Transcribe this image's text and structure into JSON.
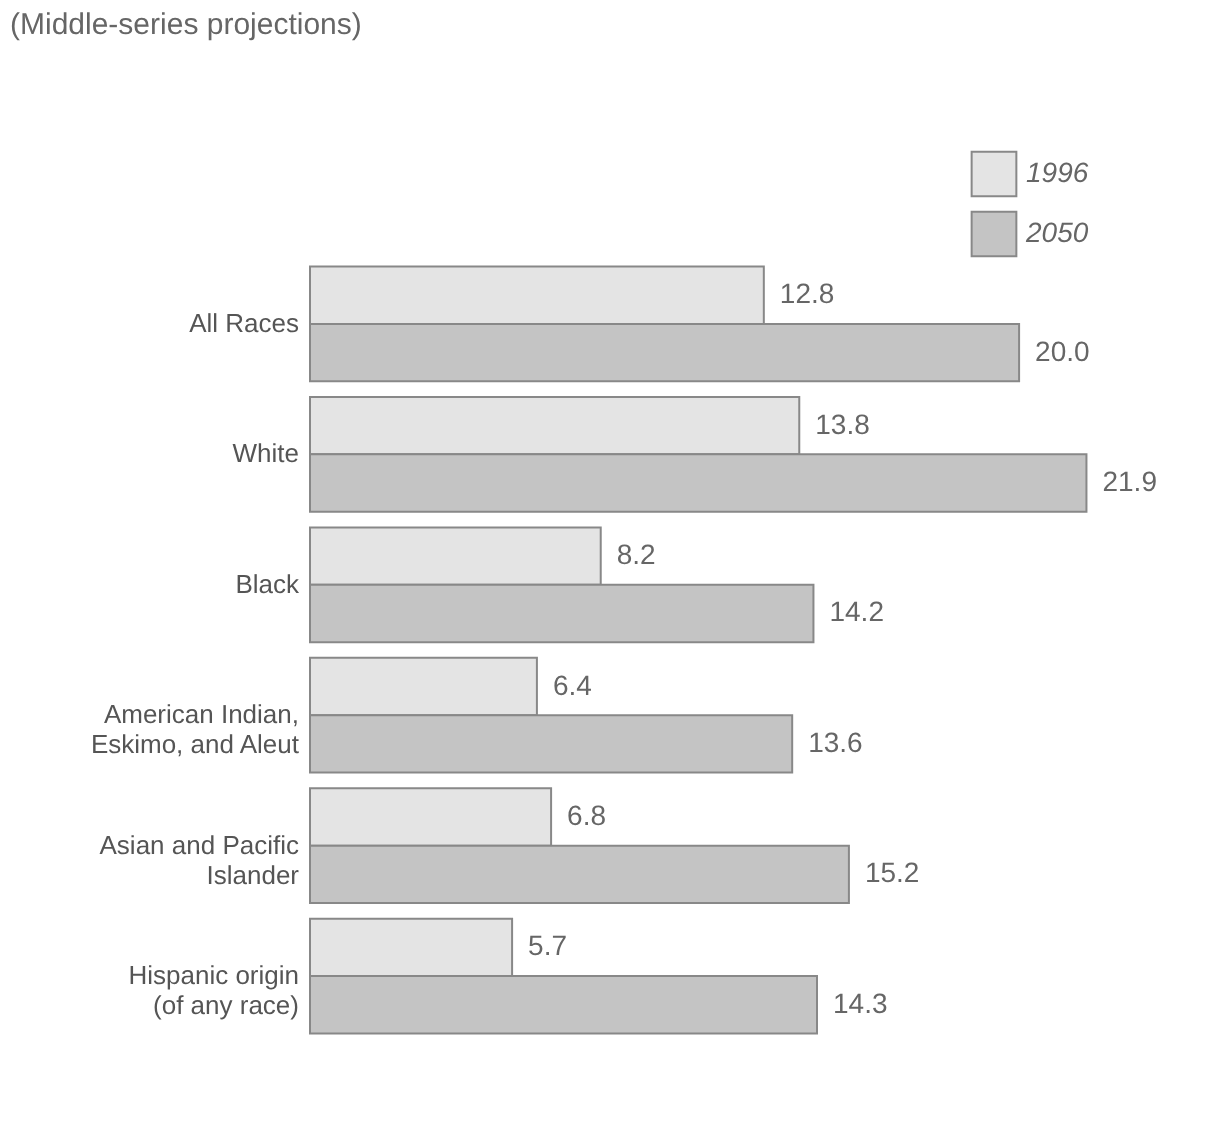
{
  "chart_data": {
    "type": "bar",
    "orientation": "horizontal",
    "subtitle": "(Middle-series projections)",
    "categories": [
      "All Races",
      "White",
      "Black",
      "American Indian, Eskimo, and Aleut",
      "Asian and Pacific Islander",
      "Hispanic origin (of any race)"
    ],
    "series": [
      {
        "name": "1996",
        "color": "#e4e4e4",
        "values": [
          12.8,
          13.8,
          8.2,
          6.4,
          6.8,
          5.7
        ],
        "value_labels": [
          "12.8",
          "13.8",
          "8.2",
          "6.4",
          "6.8",
          "5.7"
        ]
      },
      {
        "name": "2050",
        "color": "#c4c4c4",
        "values": [
          20.0,
          21.9,
          14.2,
          13.6,
          15.2,
          14.3
        ],
        "value_labels": [
          "20.0",
          "21.9",
          "14.2",
          "13.6",
          "15.2",
          "14.3"
        ]
      }
    ],
    "legend": "top right",
    "grid": false
  }
}
